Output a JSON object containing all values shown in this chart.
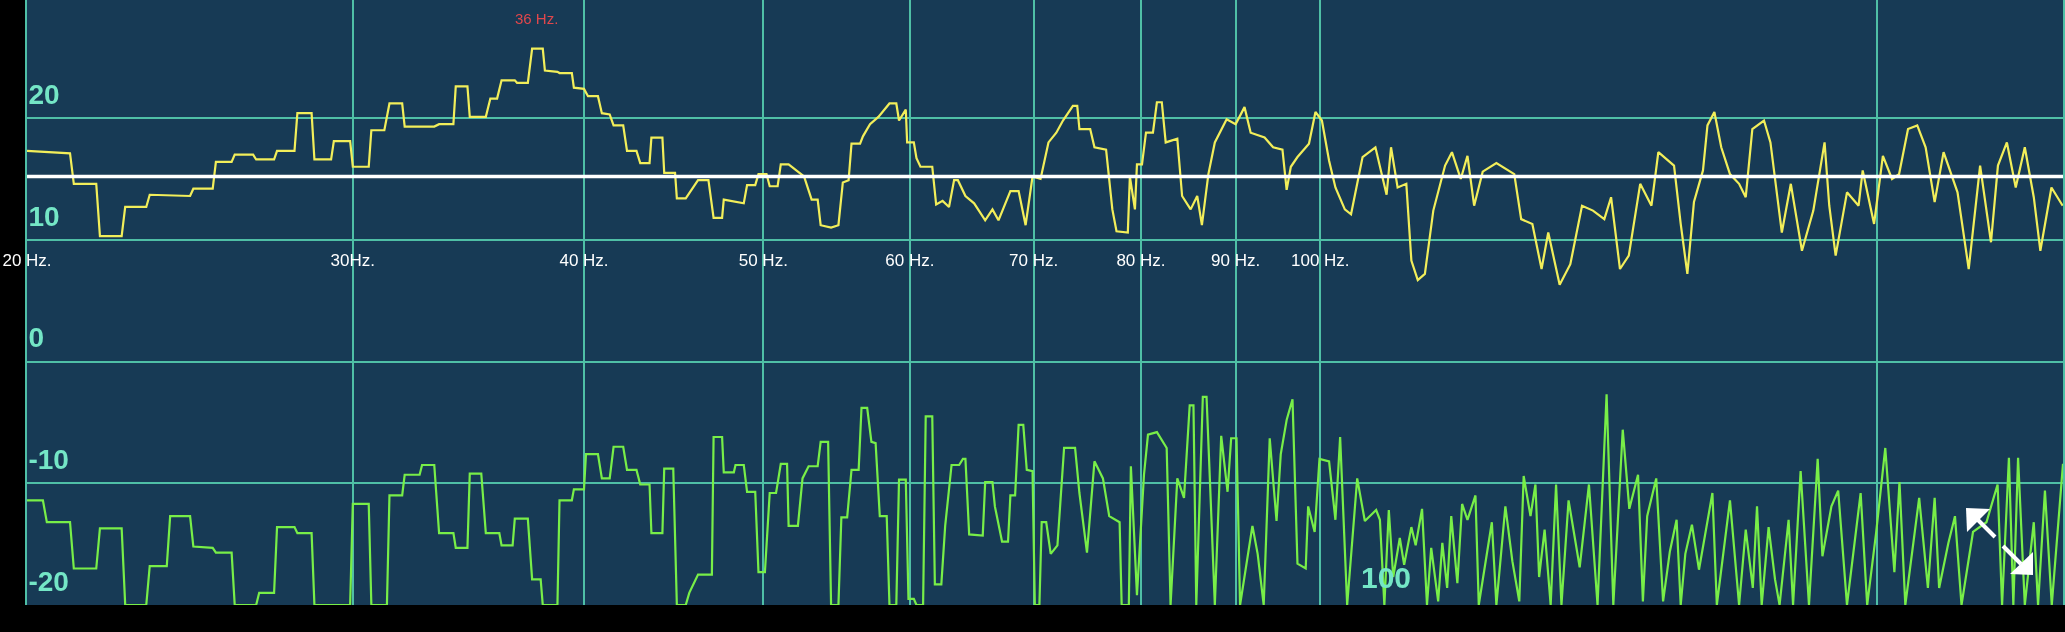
{
  "chart_data": {
    "type": "line",
    "log": "x",
    "grid": true,
    "xlim": [
      20,
      252
    ],
    "ylim": [
      -20,
      29.7
    ],
    "xticks": [
      {
        "value": 20,
        "label": "20 Hz."
      },
      {
        "value": 30,
        "label": "30Hz."
      },
      {
        "value": 40,
        "label": "40 Hz."
      },
      {
        "value": 50,
        "label": "50 Hz."
      },
      {
        "value": 60,
        "label": "60 Hz."
      },
      {
        "value": 70,
        "label": "70 Hz."
      },
      {
        "value": 80,
        "label": "80 Hz."
      },
      {
        "value": 90,
        "label": "90 Hz."
      },
      {
        "value": 100,
        "label": "100 Hz."
      },
      {
        "value": 200,
        "label": null
      }
    ],
    "yticks": [
      -20,
      -10,
      0,
      10,
      20
    ],
    "ref_lines": [
      {
        "axis": "y",
        "value": 15.2,
        "color": "#ffffff"
      }
    ],
    "annotations": [
      {
        "text": "36 Hz.",
        "x": 37.7,
        "y": 25.7
      },
      "100"
    ],
    "series": [
      {
        "color": "#f2ee5a",
        "x": [
          20.0,
          21.1,
          21.2,
          21.8,
          21.9,
          22.5,
          22.6,
          23.2,
          23.3,
          24.5,
          24.6,
          25.2,
          25.3,
          25.8,
          25.9,
          26.5,
          26.6,
          27.2,
          27.3,
          27.9,
          28.0,
          28.5,
          28.6,
          29.2,
          29.3,
          29.9,
          30.0,
          30.6,
          30.7,
          31.2,
          31.4,
          31.9,
          32.0,
          33.2,
          33.4,
          34.0,
          34.1,
          34.6,
          34.7,
          35.4,
          35.6,
          35.9,
          36.1,
          36.7,
          36.8,
          37.3,
          37.5,
          38.0,
          38.1,
          38.7,
          38.8,
          39.4,
          39.5,
          40.0,
          40.2,
          40.7,
          40.9,
          41.3,
          41.5,
          42.0,
          42.2,
          42.7,
          42.9,
          43.4,
          43.5,
          44.1,
          44.2,
          44.8,
          44.9,
          45.4,
          46.1,
          46.7,
          47.0,
          47.5,
          47.6,
          48.8,
          49.0,
          49.5,
          49.7,
          50.2,
          50.4,
          50.9,
          51.1,
          51.6,
          52.2,
          52.6,
          53.1,
          53.5,
          53.7,
          54.4,
          54.9,
          55.2,
          55.6,
          55.8,
          56.4,
          56.6,
          57.1,
          57.7,
          58.5,
          59.0,
          59.2,
          59.7,
          59.8,
          60.3,
          60.5,
          60.8,
          61.7,
          62.0,
          62.5,
          63.0,
          63.4,
          63.7,
          64.3,
          65.0,
          65.9,
          66.5,
          67.0,
          68.0,
          68.7,
          69.3,
          69.9,
          70.6,
          71.3,
          72.0,
          72.6,
          73.5,
          73.9,
          74.1,
          75.1,
          75.5,
          76.6,
          77.2,
          77.6,
          78.7,
          78.9,
          79.4,
          79.6,
          80.1,
          80.5,
          81.2,
          81.6,
          82.1,
          82.5,
          83.7,
          84.2,
          85.1,
          85.8,
          86.3,
          87.0,
          87.7,
          89.0,
          90.0,
          91.0,
          91.7,
          93.3,
          94.3,
          95.4,
          95.9,
          96.4,
          97.2,
          98.6,
          99.4,
          100.2,
          101.1,
          101.9,
          103.1,
          103.9,
          105.4,
          107.1,
          108.6,
          109.2,
          110.1,
          111.3,
          112.0,
          112.9,
          113.9,
          115.1,
          116.8,
          117.8,
          119.1,
          120.1,
          121.1,
          122.4,
          124.5,
          127.3,
          128.4,
          130.2,
          131.7,
          132.8,
          134.7,
          136.5,
          138.5,
          140.4,
          142.4,
          143.6,
          145.2,
          146.8,
          148.9,
          151.0,
          152.3,
          155.3,
          156.6,
          157.9,
          159.2,
          161.0,
          161.9,
          163.3,
          164.7,
          166.5,
          168.4,
          169.8,
          171.2,
          173.7,
          175.1,
          177.6,
          179.6,
          182.1,
          184.7,
          187.3,
          188.4,
          189.9,
          192.6,
          195.4,
          196.4,
          199.2,
          201.4,
          203.7,
          205.5,
          207.8,
          210.2,
          212.4,
          214.8,
          217.2,
          221.0,
          224.1,
          227.3,
          230.4,
          232.4,
          235.0,
          237.6,
          240.3,
          243.0,
          245.0,
          248.4,
          251.9
        ],
        "values": [
          17.3,
          17.1,
          14.6,
          14.6,
          10.3,
          10.3,
          12.7,
          12.7,
          13.7,
          13.6,
          14.2,
          14.2,
          16.4,
          16.4,
          17.0,
          17.0,
          16.6,
          16.6,
          17.3,
          17.3,
          20.4,
          20.4,
          16.6,
          16.6,
          18.1,
          18.1,
          16.0,
          16.0,
          19.0,
          19.0,
          21.2,
          21.2,
          19.3,
          19.3,
          19.5,
          19.5,
          22.6,
          22.6,
          20.1,
          20.1,
          21.6,
          21.6,
          23.1,
          23.1,
          22.9,
          22.9,
          25.7,
          25.7,
          23.9,
          23.8,
          23.7,
          23.7,
          22.5,
          22.4,
          21.8,
          21.8,
          20.4,
          20.3,
          19.4,
          19.4,
          17.3,
          17.3,
          16.3,
          16.3,
          18.4,
          18.4,
          15.5,
          15.5,
          13.4,
          13.4,
          14.9,
          14.9,
          11.8,
          11.8,
          13.3,
          13.0,
          14.5,
          14.5,
          15.4,
          15.4,
          14.4,
          14.4,
          16.2,
          16.2,
          15.6,
          15.2,
          13.3,
          13.3,
          11.2,
          11.0,
          11.2,
          14.7,
          14.9,
          17.9,
          17.9,
          18.5,
          19.5,
          20.1,
          21.2,
          21.2,
          19.8,
          20.7,
          18.0,
          18.0,
          16.7,
          16.0,
          16.0,
          12.9,
          13.2,
          12.7,
          14.9,
          14.9,
          13.6,
          13.0,
          11.6,
          12.5,
          11.6,
          14.0,
          14.0,
          11.2,
          15.2,
          15.0,
          18.0,
          18.8,
          19.8,
          21.0,
          21.0,
          19.1,
          19.1,
          17.6,
          17.4,
          12.5,
          10.7,
          10.6,
          15.2,
          12.5,
          16.2,
          16.2,
          18.8,
          18.8,
          21.3,
          21.3,
          18.0,
          18.3,
          13.6,
          12.5,
          13.6,
          11.2,
          15.4,
          18.0,
          19.9,
          19.5,
          20.9,
          18.8,
          18.4,
          17.6,
          17.4,
          14.1,
          16.0,
          16.8,
          17.9,
          20.5,
          19.8,
          16.5,
          14.3,
          12.5,
          12.1,
          16.8,
          17.6,
          13.7,
          17.6,
          14.3,
          14.6,
          8.3,
          6.7,
          7.2,
          12.4,
          16.1,
          17.2,
          15.0,
          16.9,
          12.8,
          15.6,
          16.3,
          15.4,
          11.7,
          11.3,
          7.6,
          10.6,
          6.3,
          8.0,
          12.8,
          12.4,
          11.7,
          13.5,
          7.6,
          8.7,
          14.6,
          12.8,
          17.2,
          16.1,
          11.3,
          7.2,
          13.1,
          15.7,
          19.4,
          20.5,
          17.6,
          15.4,
          14.6,
          13.5,
          19.1,
          19.8,
          18.0,
          10.6,
          14.6,
          9.1,
          12.4,
          18.0,
          12.8,
          8.7,
          13.9,
          12.8,
          15.7,
          11.3,
          16.9,
          15.0,
          15.4,
          19.1,
          19.4,
          17.6,
          13.1,
          17.2,
          13.9,
          7.6,
          16.1,
          9.8,
          16.1,
          18.0,
          14.3,
          17.6,
          13.5,
          9.1,
          14.3,
          12.8
        ]
      },
      {
        "color": "#78ee48",
        "x": [
          20.0,
          20.4,
          20.5,
          21.1,
          21.2,
          21.8,
          21.9,
          22.5,
          22.6,
          23.2,
          23.3,
          23.8,
          23.9,
          24.5,
          24.6,
          25.2,
          25.3,
          25.8,
          25.9,
          26.6,
          26.7,
          27.2,
          27.3,
          27.9,
          28.0,
          28.5,
          28.6,
          29.9,
          30.0,
          30.6,
          30.7,
          31.3,
          31.4,
          31.9,
          32.0,
          32.6,
          32.7,
          33.2,
          33.4,
          34.0,
          34.1,
          34.6,
          34.7,
          35.2,
          35.4,
          36.0,
          36.1,
          36.6,
          36.7,
          37.3,
          37.5,
          37.9,
          38.0,
          38.7,
          38.8,
          39.4,
          39.5,
          40.0,
          40.1,
          40.7,
          40.9,
          41.3,
          41.5,
          42.0,
          42.2,
          42.7,
          42.9,
          43.4,
          43.5,
          44.1,
          44.2,
          44.7,
          44.9,
          45.4,
          45.6,
          46.1,
          46.9,
          47.0,
          47.5,
          47.6,
          48.2,
          48.3,
          48.8,
          49.0,
          49.5,
          49.7,
          50.1,
          50.4,
          50.8,
          51.1,
          51.5,
          51.6,
          52.2,
          52.5,
          52.9,
          53.5,
          53.7,
          54.2,
          54.4,
          54.9,
          55.1,
          55.5,
          55.8,
          56.3,
          56.5,
          56.9,
          57.2,
          57.5,
          57.8,
          58.3,
          58.5,
          59.0,
          59.2,
          59.7,
          59.9,
          60.3,
          60.5,
          61.0,
          61.2,
          61.7,
          61.9,
          62.4,
          62.7,
          63.2,
          63.8,
          64.1,
          64.3,
          64.6,
          65.7,
          65.9,
          66.5,
          66.7,
          67.3,
          67.8,
          68.0,
          68.4,
          68.7,
          69.1,
          69.4,
          69.9,
          70.1,
          70.5,
          70.7,
          71.1,
          71.5,
          72.1,
          72.7,
          73.7,
          74.1,
          74.8,
          75.5,
          76.3,
          76.9,
          77.9,
          78.1,
          78.8,
          79.0,
          79.6,
          80.3,
          80.7,
          81.6,
          82.6,
          83.0,
          83.7,
          84.4,
          85.0,
          85.4,
          85.7,
          86.4,
          86.8,
          87.2,
          87.7,
          88.4,
          89.1,
          89.5,
          90.1,
          90.5,
          91.9,
          92.5,
          93.2,
          93.9,
          94.7,
          95.2,
          95.9,
          96.6,
          97.2,
          98.2,
          98.5,
          99.3,
          99.9,
          101.1,
          101.9,
          102.5,
          103.4,
          104.7,
          105.7,
          107.2,
          107.7,
          108.3,
          108.9,
          109.5,
          110.4,
          111.0,
          112.0,
          112.6,
          113.5,
          114.2,
          114.8,
          115.8,
          116.4,
          117.1,
          117.7,
          118.6,
          119.3,
          120.1,
          121.3,
          121.8,
          123.8,
          124.5,
          125.9,
          127.0,
          128.1,
          128.8,
          129.9,
          130.7,
          131.3,
          132.2,
          133.2,
          134.1,
          135.0,
          136.2,
          138.1,
          139.7,
          141.2,
          142.8,
          144.0,
          145.7,
          146.9,
          148.5,
          149.4,
          150.2,
          151.9,
          153.2,
          154.5,
          155.8,
          156.6,
          157.5,
          158.8,
          160.2,
          162.9,
          163.8,
          166.5,
          168.4,
          169.8,
          171.3,
          172.2,
          173.2,
          174.7,
          176.1,
          177.1,
          179.1,
          180.1,
          181.8,
          183.7,
          185.7,
          186.8,
          188.9,
          190.5,
          192.6,
          195.9,
          197.5,
          199.7,
          202.0,
          204.3,
          205.6,
          207.1,
          210.7,
          213.0,
          214.8,
          216.0,
          218.5,
          220.3,
          222.1,
          225.3,
          229.1,
          232.3,
          233.6,
          235.6,
          236.9,
          238.3,
          240.3,
          243.0,
          244.3,
          246.4,
          248.5,
          252.0
        ],
        "values": [
          -11.4,
          -11.4,
          -13.2,
          -13.2,
          -17.0,
          -17.0,
          -13.7,
          -13.7,
          -20,
          -20,
          -16.8,
          -16.8,
          -12.7,
          -12.7,
          -15.2,
          -15.3,
          -15.7,
          -15.7,
          -20,
          -20,
          -19.0,
          -19.0,
          -13.6,
          -13.6,
          -14.1,
          -14.1,
          -20,
          -20,
          -11.7,
          -11.7,
          -20,
          -20,
          -11.0,
          -11.0,
          -9.3,
          -9.3,
          -8.5,
          -8.5,
          -14.1,
          -14.1,
          -15.3,
          -15.3,
          -9.2,
          -9.2,
          -14.1,
          -14.1,
          -15.1,
          -15.1,
          -12.9,
          -12.9,
          -17.9,
          -17.9,
          -20,
          -20,
          -11.4,
          -11.4,
          -10.5,
          -10.5,
          -7.6,
          -7.6,
          -9.6,
          -9.6,
          -7.0,
          -7.0,
          -8.9,
          -8.9,
          -10.1,
          -10.1,
          -14.1,
          -14.1,
          -8.8,
          -8.8,
          -20,
          -20,
          -19.0,
          -17.5,
          -17.5,
          -6.2,
          -6.2,
          -9.1,
          -9.1,
          -8.5,
          -8.5,
          -10.7,
          -10.7,
          -17.3,
          -17.3,
          -10.8,
          -10.8,
          -8.4,
          -8.4,
          -13.5,
          -13.5,
          -9.6,
          -8.6,
          -8.6,
          -6.6,
          -6.6,
          -20,
          -20,
          -12.8,
          -12.8,
          -8.9,
          -8.9,
          -3.8,
          -3.8,
          -6.6,
          -6.7,
          -12.7,
          -12.7,
          -20,
          -20,
          -9.7,
          -9.7,
          -19.5,
          -19.5,
          -20,
          -20,
          -4.5,
          -4.5,
          -18.3,
          -18.3,
          -13.5,
          -8.5,
          -8.5,
          -8.0,
          -8.0,
          -14.2,
          -14.3,
          -9.9,
          -9.9,
          -11.9,
          -14.8,
          -14.8,
          -11.0,
          -11.0,
          -5.2,
          -5.2,
          -8.9,
          -9.0,
          -20,
          -20,
          -13.2,
          -13.2,
          -15.8,
          -15.1,
          -7.1,
          -7.1,
          -10.8,
          -15.7,
          -8.2,
          -9.6,
          -12.7,
          -13.2,
          -20,
          -20,
          -8.6,
          -19.2,
          -9.3,
          -6.0,
          -5.8,
          -7.1,
          -20,
          -9.6,
          -11.2,
          -3.6,
          -3.6,
          -20,
          -2.9,
          -2.9,
          -10.4,
          -20,
          -6.1,
          -10.7,
          -6.3,
          -6.3,
          -20,
          -13.5,
          -15.8,
          -20,
          -6.3,
          -13.1,
          -7.6,
          -4.8,
          -3.1,
          -16.6,
          -17.0,
          -11.9,
          -14.0,
          -8.0,
          -8.2,
          -13.0,
          -6.2,
          -20,
          -9.6,
          -13.1,
          -12.2,
          -13.0,
          -20,
          -12.2,
          -17.7,
          -14.5,
          -16.7,
          -13.6,
          -15.1,
          -12.1,
          -20,
          -15.3,
          -19.7,
          -14.9,
          -18.6,
          -12.7,
          -18.2,
          -11.7,
          -13.0,
          -11.0,
          -20,
          -13.2,
          -20,
          -11.9,
          -16.4,
          -19.7,
          -9.4,
          -12.7,
          -10.1,
          -17.7,
          -13.8,
          -20,
          -10.1,
          -20,
          -11.4,
          -16.9,
          -10.1,
          -20,
          -2.7,
          -20,
          -5.6,
          -12.1,
          -9.3,
          -19.7,
          -12.7,
          -9.6,
          -19.7,
          -15.6,
          -13.0,
          -20,
          -15.8,
          -13.4,
          -17.1,
          -10.8,
          -20,
          -11.4,
          -20,
          -13.8,
          -18.6,
          -11.9,
          -20,
          -13.6,
          -17.9,
          -20,
          -13.0,
          -20,
          -9.0,
          -20,
          -8.0,
          -16.0,
          -11.9,
          -10.6,
          -20,
          -10.8,
          -20,
          -14.1,
          -7.1,
          -17.3,
          -9.9,
          -20,
          -11.2,
          -18.6,
          -11.2,
          -18.6,
          -14.9,
          -12.7,
          -20,
          -14.0,
          -13.2,
          -10.1,
          -20,
          -7.9,
          -20,
          -7.9,
          -20,
          -13.2,
          -20,
          -10.6,
          -20,
          -8.4
        ]
      }
    ]
  }
}
